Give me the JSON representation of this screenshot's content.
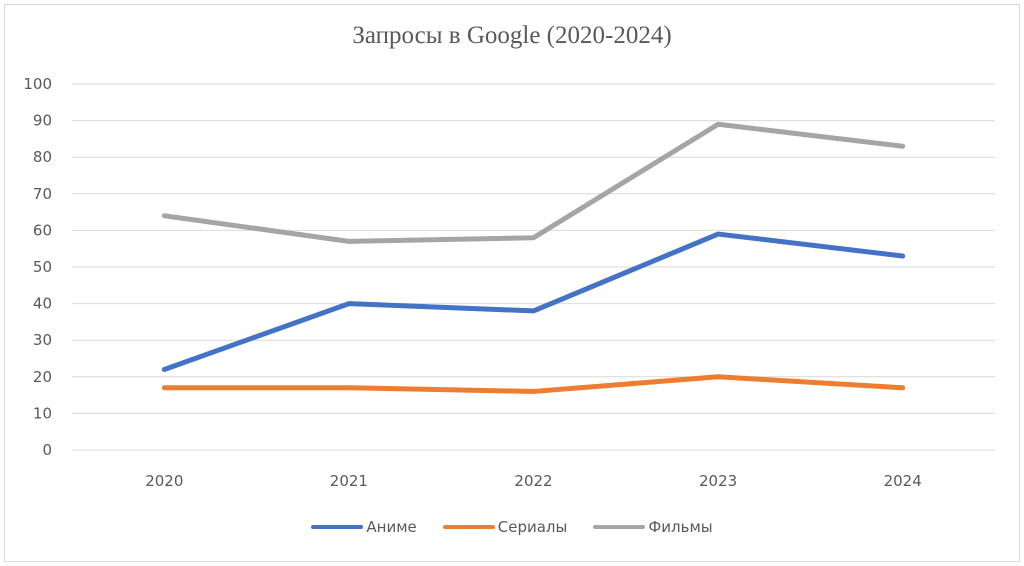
{
  "chart_data": {
    "type": "line",
    "title": "Запросы в Google (2020-2024)",
    "xlabel": "",
    "ylabel": "",
    "categories": [
      "2020",
      "2021",
      "2022",
      "2023",
      "2024"
    ],
    "series": [
      {
        "name": "Аниме",
        "color": "#4472c4",
        "values": [
          22,
          40,
          38,
          59,
          53
        ]
      },
      {
        "name": "Сериалы",
        "color": "#ed7d31",
        "values": [
          17,
          17,
          16,
          20,
          17
        ]
      },
      {
        "name": "Фильмы",
        "color": "#a5a5a5",
        "values": [
          64,
          57,
          58,
          89,
          83
        ]
      }
    ],
    "ylim": [
      0,
      100
    ],
    "yticks": [
      "0",
      "10",
      "20",
      "30",
      "40",
      "50",
      "60",
      "70",
      "80",
      "90",
      "100"
    ],
    "grid": true,
    "legend_position": "bottom"
  }
}
